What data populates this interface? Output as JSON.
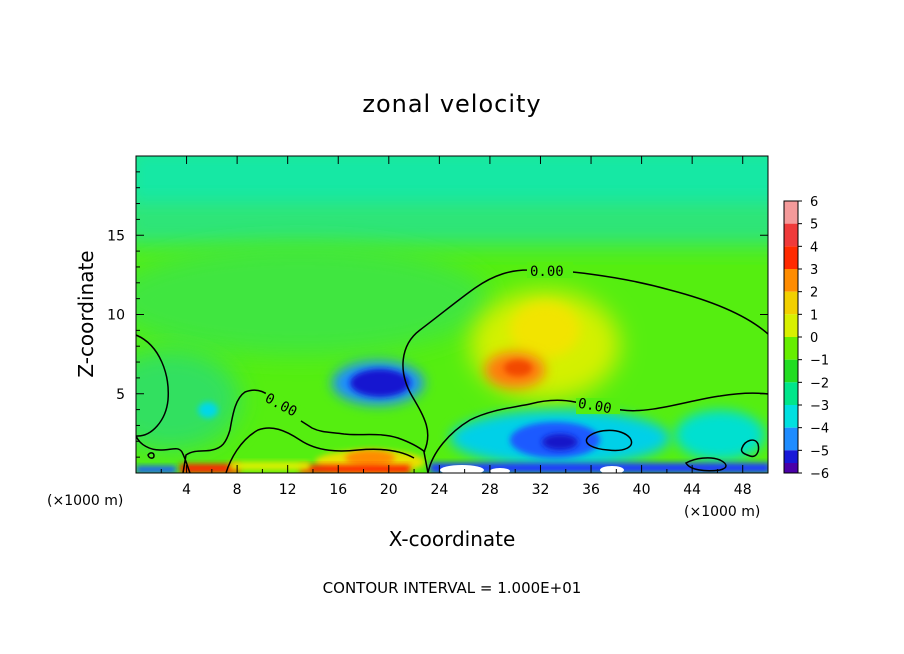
{
  "chart_data": {
    "type": "heatmap",
    "title": "zonal velocity",
    "xlabel": "X-coordinate",
    "ylabel": "Z-coordinate",
    "x_unit_label": "(×1000 m)",
    "xlim": [
      0,
      50
    ],
    "ylim": [
      0,
      20
    ],
    "x_ticks": [
      4,
      8,
      12,
      16,
      20,
      24,
      28,
      32,
      36,
      40,
      44,
      48
    ],
    "y_ticks": [
      5,
      10,
      15
    ],
    "colorbar": {
      "levels": [
        6,
        5,
        4,
        3,
        2,
        1,
        0,
        -1,
        -2,
        -3,
        -4,
        -5,
        -6
      ],
      "colors": [
        "#f49a9a",
        "#ef3a3a",
        "#ff2a00",
        "#ff8c00",
        "#f2d000",
        "#d8f000",
        "#66ee00",
        "#22dd22",
        "#00e68a",
        "#00e0e0",
        "#1e8cff",
        "#1818d8",
        "#4a00a8"
      ]
    },
    "contour_label": "0.00",
    "footnote": "CONTOUR INTERVAL = 1.000E+01",
    "features": [
      {
        "x": 18.5,
        "z": 5.5,
        "value": -5,
        "color": "#1010d0"
      },
      {
        "x": 29.5,
        "z": 6.5,
        "value": 3,
        "color": "#ff7a10"
      },
      {
        "x": 31,
        "z": 8.5,
        "value": 1.5,
        "color": "#e8ee00"
      },
      {
        "x": 33,
        "z": 2,
        "value": -4,
        "color": "#1a5aff"
      },
      {
        "x": 19,
        "z": 1,
        "value": 3,
        "color": "#ff8c00"
      },
      {
        "x": 6,
        "z": 0.4,
        "value": 5,
        "color": "#ff2000"
      }
    ]
  }
}
